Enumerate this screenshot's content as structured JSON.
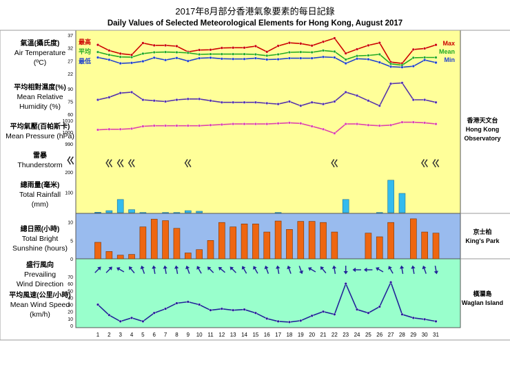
{
  "title_zh": "2017年8月部分香港氣象要素的每日記錄",
  "title_en": "Daily Values of Selected Meteorological Elements for Hong Kong, August 2017",
  "stations": [
    {
      "zh": "香港天文台",
      "en1": "Hong Kong",
      "en2": "Observatory"
    },
    {
      "zh": "京士柏",
      "en1": "King's Park",
      "en2": ""
    },
    {
      "zh": "橫瀾島",
      "en1": "Waglan Island",
      "en2": ""
    }
  ],
  "colors": {
    "obs_bg": "#ffff99",
    "kp_bg": "#99bbee",
    "wg_bg": "#99ffcc",
    "max": "#cc0000",
    "mean": "#22aa22",
    "min": "#2244cc",
    "humidity": "#5533aa",
    "pressure": "#dd44aa",
    "rain": "#33bbee",
    "sun": "#ee6611",
    "wind": "#222299"
  },
  "chart_data": {
    "type": "line",
    "days": [
      "1",
      "2",
      "3",
      "4",
      "5",
      "6",
      "7",
      "8",
      "9",
      "10",
      "11",
      "12",
      "13",
      "14",
      "15",
      "16",
      "17",
      "18",
      "19",
      "20",
      "21",
      "22",
      "23",
      "24",
      "25",
      "26",
      "27",
      "28",
      "29",
      "30",
      "31"
    ],
    "panels": [
      {
        "id": "temperature",
        "label_zh": "氣溫(攝氏度)",
        "label_en1": "Air Temperature",
        "label_en2": "(ºC)",
        "ylim": [
          22,
          37
        ],
        "ticks": [
          "37",
          "32",
          "27",
          "22"
        ],
        "legend_left": [
          "最高",
          "平均",
          "最低"
        ],
        "legend_right": [
          "Max",
          "Mean",
          "Min"
        ],
        "series": [
          {
            "name": "Max",
            "values": [
              33.2,
              31.0,
              29.8,
              29.3,
              33.9,
              33.0,
              33.0,
              32.7,
              30.5,
              31.2,
              31.3,
              32.0,
              32.1,
              32.1,
              32.7,
              30.5,
              32.8,
              34.0,
              33.7,
              32.9,
              34.4,
              35.8,
              29.9,
              31.5,
              33.0,
              34.0,
              26.5,
              26.0,
              31.4,
              31.8,
              33.2
            ]
          },
          {
            "name": "Mean",
            "values": [
              30.4,
              29.3,
              28.5,
              28.4,
              29.8,
              30.3,
              30.4,
              30.3,
              30.1,
              29.5,
              29.6,
              29.6,
              29.6,
              29.6,
              29.5,
              29.0,
              29.5,
              30.3,
              30.4,
              30.3,
              31.0,
              30.6,
              27.5,
              28.9,
              29.1,
              29.5,
              25.8,
              25.3,
              28.2,
              28.3,
              28.3
            ]
          },
          {
            "name": "Min",
            "values": [
              28.3,
              27.4,
              26.0,
              26.2,
              26.8,
              28.2,
              27.3,
              28.1,
              26.9,
              28.0,
              28.2,
              27.8,
              27.7,
              27.7,
              28.0,
              27.5,
              27.6,
              28.0,
              28.0,
              28.0,
              28.5,
              28.3,
              26.0,
              27.8,
              27.6,
              26.4,
              24.7,
              24.5,
              24.9,
              27.3,
              26.3
            ]
          }
        ]
      },
      {
        "id": "humidity",
        "label_zh": "平均相對濕度(%)",
        "label_en1": "Mean Relative",
        "label_en2": "Humidity  (%)",
        "ylim": [
          60,
          90
        ],
        "ticks": [
          "90",
          "75",
          "60"
        ],
        "series": [
          {
            "name": "",
            "values": [
              77,
              80,
              85,
              86,
              77,
              76,
              75,
              77,
              78,
              78,
              76,
              74,
              74,
              74,
              74,
              73,
              72,
              75,
              70,
              74,
              72,
              75,
              86,
              82,
              76,
              70,
              96,
              97,
              77,
              77,
              74
            ]
          }
        ]
      },
      {
        "id": "pressure",
        "label_zh": "平均氣壓(百帕斯卡)",
        "label_en1": "Mean Pressure (hPa)",
        "label_en2": "",
        "ylim": [
          990,
          1010
        ],
        "ticks": [
          "1010",
          "1000",
          "990"
        ],
        "series": [
          {
            "name": "",
            "values": [
              1002,
              1002.5,
              1002.5,
              1003,
              1005,
              1005.5,
              1005.5,
              1005.5,
              1005.5,
              1005.5,
              1006,
              1006.5,
              1007,
              1007,
              1007,
              1007,
              1007.5,
              1008,
              1007.5,
              1005,
              1002.5,
              999,
              1007,
              1007,
              1006,
              1005.5,
              1006,
              1008.5,
              1008.5,
              1008,
              1007
            ]
          }
        ]
      },
      {
        "id": "thunderstorm",
        "label_zh": "雷暴",
        "label_en1": "Thunderstorm",
        "label_en2": "",
        "symbol": "ㄍ",
        "days_with_storm": [
          2,
          3,
          4,
          9,
          22,
          30,
          31
        ]
      },
      {
        "id": "rainfall",
        "label_zh": "總雨量(毫米)",
        "label_en1": "Total Rainfall",
        "label_en2": "(mm)",
        "ylim": [
          0,
          200
        ],
        "ticks": [
          "200",
          "100"
        ],
        "series": [
          {
            "name": "",
            "values": [
              2,
              10,
              65,
              15,
              1,
              0,
              1,
              1,
              10,
              7,
              0,
              0,
              0,
              0,
              0,
              0,
              1,
              0,
              0,
              0,
              0,
              0,
              65,
              0,
              0,
              1,
              160,
              95,
              0,
              0,
              0
            ]
          }
        ]
      },
      {
        "id": "sunshine",
        "label_zh": "總日照(小時)",
        "label_en1": "Total Bright",
        "label_en2": "Sunshine  (hours)",
        "ylim": [
          0,
          12
        ],
        "ticks": [
          "10",
          "5",
          "0"
        ],
        "series": [
          {
            "name": "",
            "values": [
              4.5,
              2,
              1,
              1.2,
              8.7,
              10.8,
              10.4,
              8.3,
              1.6,
              2.5,
              5,
              9.9,
              8.7,
              9.5,
              9.5,
              7.3,
              10.3,
              8,
              10.2,
              10.2,
              9.9,
              7.3,
              0,
              0,
              7,
              6,
              9.9,
              0,
              10.9,
              7.3,
              7
            ]
          }
        ]
      },
      {
        "id": "wind_direction",
        "label_zh": "盛行風向",
        "label_en1": "Prevailing",
        "label_en2": "Wind Direction",
        "rotation_deg": [
          45,
          45,
          -60,
          -40,
          -20,
          -10,
          -10,
          -10,
          -20,
          -30,
          -45,
          -50,
          -45,
          -30,
          -30,
          -20,
          -10,
          -20,
          160,
          -60,
          -40,
          -10,
          180,
          -90,
          -90,
          -60,
          -30,
          -10,
          -10,
          -20,
          170
        ]
      },
      {
        "id": "wind_speed",
        "label_zh": "平均風速(公里/小時)",
        "label_en1": "Mean Wind Speed",
        "label_en2": "(km/h)",
        "ylim": [
          0,
          70
        ],
        "ticks": [
          "70",
          "60",
          "50",
          "40",
          "30",
          "20",
          "10",
          "0"
        ],
        "series": [
          {
            "name": "",
            "values": [
              30,
              15,
              6,
              11,
              6,
              18,
              24,
              32,
              34,
              30,
              22,
              24,
              22,
              23,
              18,
              10,
              6,
              5,
              7,
              14,
              20,
              16,
              60,
              23,
              18,
              27,
              62,
              16,
              11,
              9,
              6
            ]
          }
        ]
      }
    ]
  }
}
